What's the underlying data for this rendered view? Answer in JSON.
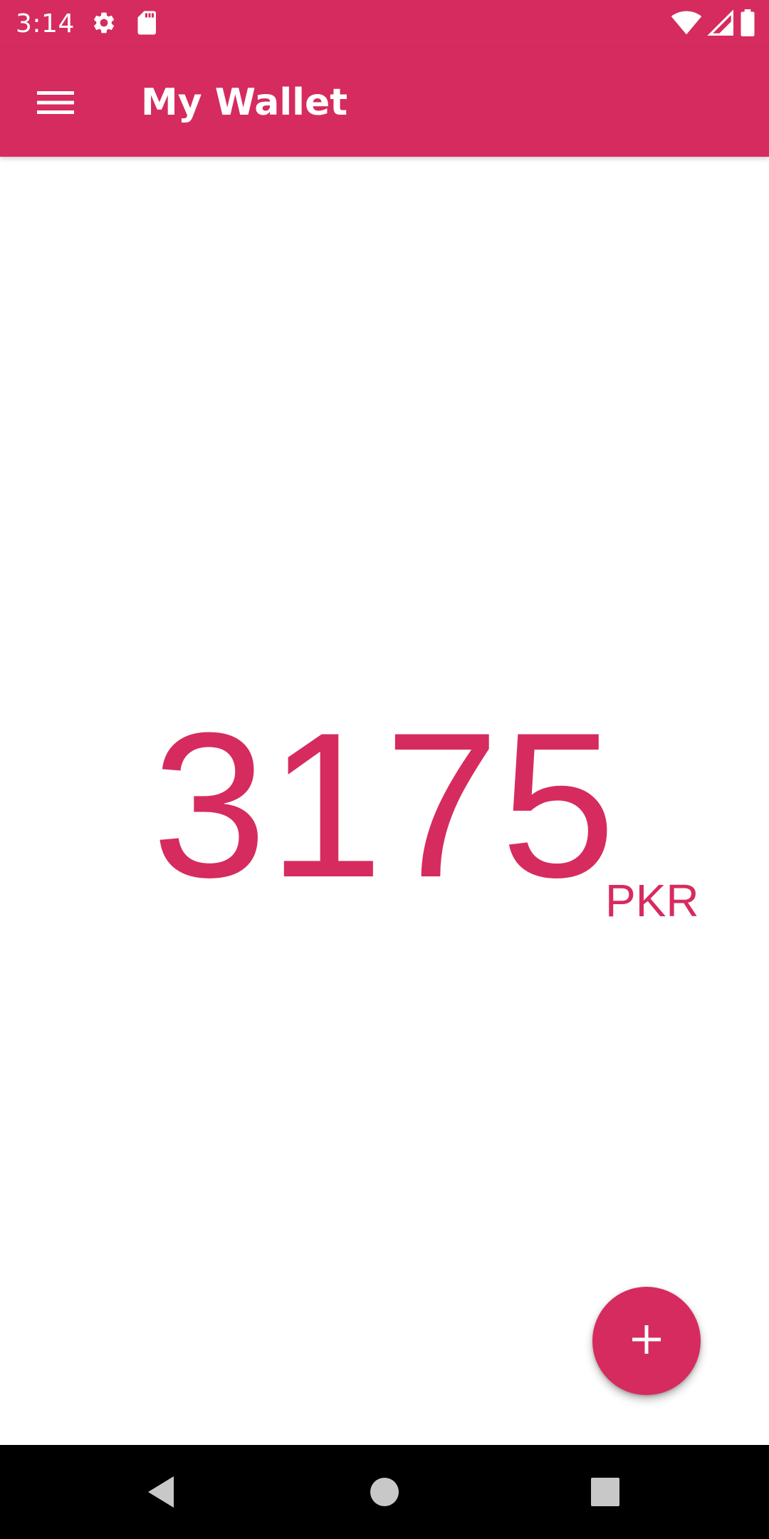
{
  "status_bar": {
    "time": "3:14",
    "left_icons": [
      "gear-icon",
      "sd-card-icon"
    ],
    "right_icons": [
      "wifi-icon",
      "signal-icon",
      "battery-icon"
    ]
  },
  "app_bar": {
    "menu_icon": "hamburger-menu-icon",
    "title": "My Wallet"
  },
  "balance": {
    "amount": "3175",
    "currency": "PKR"
  },
  "fab": {
    "icon": "plus-icon"
  },
  "nav_bar": {
    "buttons": [
      "back-icon",
      "home-icon",
      "recents-icon"
    ]
  },
  "colors": {
    "primary": "#d62b5e",
    "background": "#ffffff",
    "nav_bar": "#000000"
  }
}
